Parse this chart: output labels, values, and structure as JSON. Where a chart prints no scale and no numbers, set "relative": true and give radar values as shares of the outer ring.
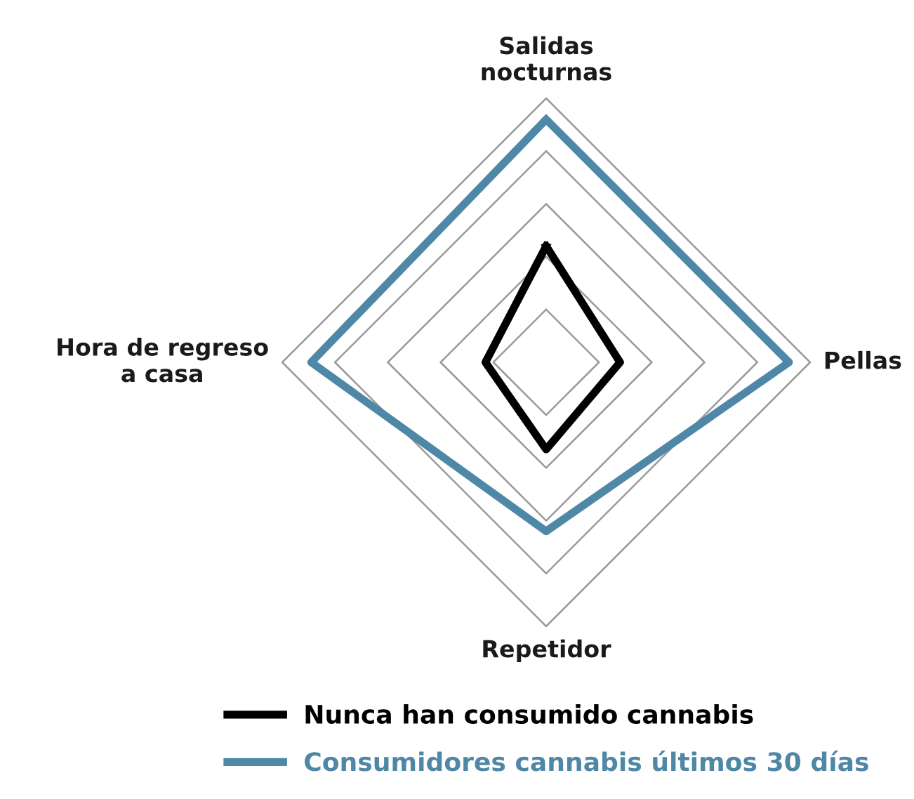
{
  "chart_data": {
    "type": "radar",
    "relative": true,
    "grid": true,
    "legend": "bottom",
    "categories": [
      "Salidas\nnocturnas",
      "Pellas",
      "Repetidor",
      "Hora de regreso\na casa"
    ],
    "series": [
      {
        "name": "Nunca han consumido cannabis",
        "color": "#000000",
        "values": [
          0.44,
          0.28,
          0.33,
          0.23
        ]
      },
      {
        "name": "Consumidores cannabis últimos 30 días",
        "color": "#4f87a6",
        "values": [
          0.92,
          0.92,
          0.64,
          0.89
        ]
      }
    ]
  }
}
